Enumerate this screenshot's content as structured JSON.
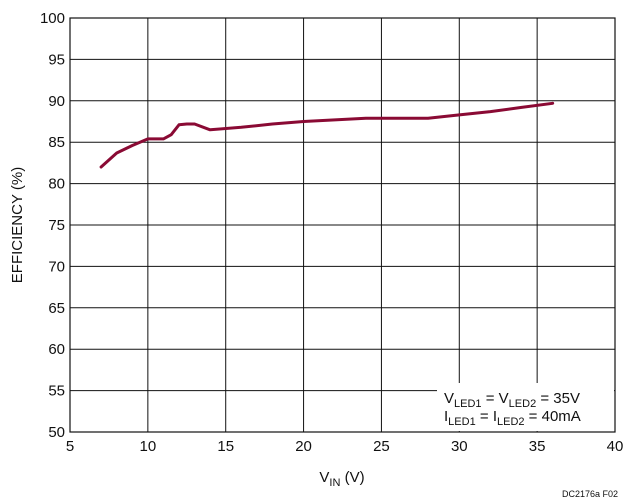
{
  "chart_data": {
    "type": "line",
    "title": "",
    "xlabel": {
      "main": "V",
      "sub": "IN",
      "unit": " (V)"
    },
    "ylabel": "EFFICIENCY (%)",
    "xlim": [
      5,
      40
    ],
    "ylim": [
      50,
      100
    ],
    "xticks": [
      5,
      10,
      15,
      20,
      25,
      30,
      35,
      40
    ],
    "yticks": [
      50,
      55,
      60,
      65,
      70,
      75,
      80,
      85,
      90,
      95,
      100
    ],
    "grid": true,
    "line_color": "#8a0a34",
    "series": [
      {
        "x": [
          7,
          8,
          9,
          10,
          11,
          11.5,
          12,
          12.5,
          13,
          14,
          16,
          18,
          20,
          24,
          28,
          30,
          32,
          34,
          36
        ],
        "y": [
          82.0,
          83.7,
          84.6,
          85.4,
          85.4,
          85.9,
          87.1,
          87.2,
          87.2,
          86.5,
          86.8,
          87.2,
          87.5,
          87.9,
          87.9,
          88.3,
          88.7,
          89.2,
          89.7
        ]
      }
    ],
    "annotations": {
      "line1": {
        "a": "V",
        "a_sub": "LED1",
        "eq": " = ",
        "b": "V",
        "b_sub": "LED2",
        "rest": " = 35V"
      },
      "line2": {
        "a": "I",
        "a_sub": "LED1",
        "eq": " = ",
        "b": "I",
        "b_sub": "LED2",
        "rest": " = 40mA"
      }
    },
    "figure_code": "DC2176a F02"
  }
}
